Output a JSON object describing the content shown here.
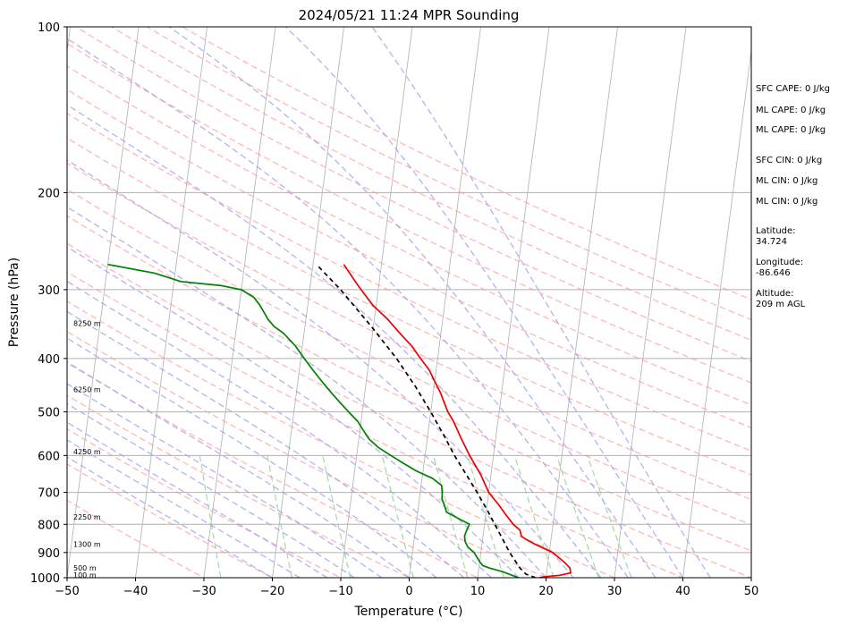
{
  "chart_data": {
    "type": "line",
    "subtype": "skew-T log-P sounding",
    "title": "2024/05/21 11:24 MPR Sounding",
    "xlabel": "Temperature (°C)",
    "ylabel": "Pressure (hPa)",
    "xlim": [
      -50,
      50
    ],
    "ylim": [
      1000,
      100
    ],
    "y_scale": "log",
    "x_ticks": [
      -50,
      -40,
      -30,
      -20,
      -10,
      0,
      10,
      20,
      30,
      40,
      50
    ],
    "x_tick_labels": [
      "−50",
      "−40",
      "−30",
      "−20",
      "−10",
      "0",
      "10",
      "20",
      "30",
      "40",
      "50"
    ],
    "y_ticks": [
      1000,
      900,
      800,
      700,
      600,
      500,
      400,
      300,
      200,
      100
    ],
    "y_tick_labels": [
      "1000",
      "900",
      "800",
      "700",
      "600",
      "500",
      "400",
      "300",
      "200",
      "100"
    ],
    "grid": true,
    "background_lines": {
      "isotherm_color": "#b0b0b0",
      "dry_adiabat_color": "#ff9999",
      "moist_adiabat_color": "#9999ee",
      "mixing_ratio_color": "#88cc88"
    },
    "height_labels": [
      {
        "text": "100 m",
        "p": 988
      },
      {
        "text": "500 m",
        "p": 960
      },
      {
        "text": "1300 m",
        "p": 870
      },
      {
        "text": "2250 m",
        "p": 775
      },
      {
        "text": "4250 m",
        "p": 590
      },
      {
        "text": "6250 m",
        "p": 455
      },
      {
        "text": "8250 m",
        "p": 345
      }
    ],
    "series": [
      {
        "color": "#ee0000",
        "points": [
          [
            1000,
            19
          ],
          [
            995,
            20
          ],
          [
            990,
            22
          ],
          [
            980,
            23.5
          ],
          [
            960,
            23.3
          ],
          [
            940,
            22.5
          ],
          [
            900,
            20.5
          ],
          [
            870,
            17.8
          ],
          [
            850,
            16.2
          ],
          [
            840,
            15.6
          ],
          [
            820,
            15.3
          ],
          [
            800,
            14.2
          ],
          [
            770,
            13
          ],
          [
            740,
            11.8
          ],
          [
            700,
            10
          ],
          [
            650,
            8.5
          ],
          [
            600,
            6.5
          ],
          [
            560,
            5
          ],
          [
            520,
            3.5
          ],
          [
            500,
            2.5
          ],
          [
            460,
            1
          ],
          [
            440,
            0
          ],
          [
            420,
            -1
          ],
          [
            400,
            -2.5
          ],
          [
            380,
            -4
          ],
          [
            360,
            -6
          ],
          [
            340,
            -8
          ],
          [
            320,
            -10.5
          ],
          [
            300,
            -12.5
          ],
          [
            290,
            -13.5
          ],
          [
            270,
            -15.5
          ]
        ]
      },
      {
        "color": "#000000",
        "dash": "5,4",
        "points": [
          [
            1000,
            18.5
          ],
          [
            985,
            17
          ],
          [
            960,
            16
          ],
          [
            900,
            14.2
          ],
          [
            850,
            12.9
          ],
          [
            800,
            11.5
          ],
          [
            750,
            10
          ],
          [
            700,
            8.3
          ],
          [
            650,
            6.4
          ],
          [
            600,
            4.3
          ],
          [
            550,
            2.3
          ],
          [
            500,
            0
          ],
          [
            450,
            -2.7
          ],
          [
            400,
            -6
          ],
          [
            350,
            -10.3
          ],
          [
            300,
            -15.5
          ],
          [
            270,
            -19.5
          ]
        ]
      },
      {
        "color": "#008000",
        "points": [
          [
            1000,
            16
          ],
          [
            990,
            15
          ],
          [
            975,
            13.5
          ],
          [
            960,
            11.5
          ],
          [
            950,
            10.5
          ],
          [
            935,
            10
          ],
          [
            900,
            9
          ],
          [
            880,
            8
          ],
          [
            860,
            7.5
          ],
          [
            840,
            7.3
          ],
          [
            820,
            7.5
          ],
          [
            800,
            7.8
          ],
          [
            780,
            6
          ],
          [
            760,
            4.2
          ],
          [
            740,
            3.8
          ],
          [
            720,
            3.3
          ],
          [
            700,
            3.2
          ],
          [
            680,
            3
          ],
          [
            660,
            1.5
          ],
          [
            640,
            -1
          ],
          [
            620,
            -3
          ],
          [
            600,
            -5
          ],
          [
            580,
            -7
          ],
          [
            560,
            -8.5
          ],
          [
            540,
            -9.5
          ],
          [
            520,
            -10.5
          ],
          [
            500,
            -12
          ],
          [
            480,
            -13.5
          ],
          [
            460,
            -15
          ],
          [
            440,
            -16.5
          ],
          [
            420,
            -18
          ],
          [
            400,
            -19.5
          ],
          [
            380,
            -21
          ],
          [
            360,
            -23
          ],
          [
            350,
            -24.5
          ],
          [
            340,
            -25.5
          ],
          [
            320,
            -27
          ],
          [
            310,
            -28
          ],
          [
            300,
            -30
          ],
          [
            295,
            -33
          ],
          [
            290,
            -39
          ],
          [
            280,
            -43
          ],
          [
            270,
            -50
          ]
        ]
      }
    ],
    "side_text": [
      "SFC CAPE: 0 J/kg",
      "ML CAPE: 0 J/kg",
      "ML CAPE: 0 J/kg",
      "SFC CIN: 0 J/kg",
      "ML CIN: 0 J/kg",
      "ML CIN: 0 J/kg",
      "Latitude:",
      "34.724",
      "Longitude:",
      "-86.646",
      "Altitude:",
      "209 m AGL"
    ]
  }
}
